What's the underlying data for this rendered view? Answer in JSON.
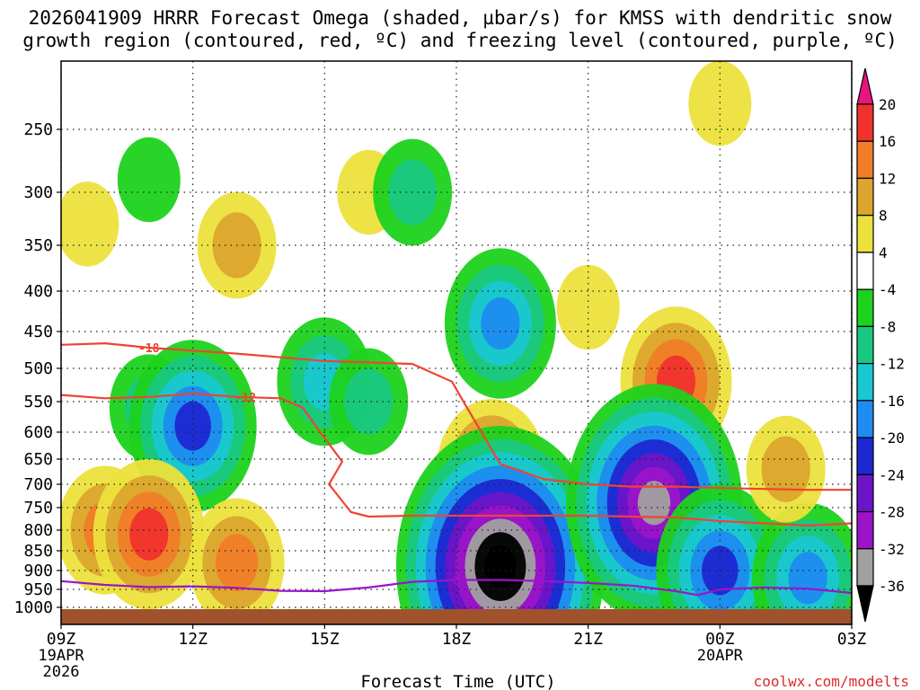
{
  "chart_data": {
    "type": "heatmap",
    "title_line1": "2026041909 HRRR Forecast Omega (shaded, µbar/s) for KMSS with dendritic snow",
    "title_line2": "growth region (contoured, red, ºC) and freezing level (contoured, purple, ºC)",
    "xlabel": "Forecast Time (UTC)",
    "ylabel": "Pressure (hPa)",
    "credit": "coolwx.com/modelts",
    "x_range_hours": [
      9,
      27
    ],
    "x_ticks": [
      {
        "hour": 9,
        "label": "09Z",
        "sub1": "19APR",
        "sub2": "2026"
      },
      {
        "hour": 12,
        "label": "12Z",
        "sub1": "",
        "sub2": ""
      },
      {
        "hour": 15,
        "label": "15Z",
        "sub1": "",
        "sub2": ""
      },
      {
        "hour": 18,
        "label": "18Z",
        "sub1": "",
        "sub2": ""
      },
      {
        "hour": 21,
        "label": "21Z",
        "sub1": "",
        "sub2": ""
      },
      {
        "hour": 24,
        "label": "00Z",
        "sub1": "20APR",
        "sub2": ""
      },
      {
        "hour": 27,
        "label": "03Z",
        "sub1": "",
        "sub2": ""
      }
    ],
    "y_ticks": [
      {
        "p": 250,
        "label": "250"
      },
      {
        "p": 300,
        "label": "300"
      },
      {
        "p": 350,
        "label": "350"
      },
      {
        "p": 400,
        "label": "400"
      },
      {
        "p": 450,
        "label": "450"
      },
      {
        "p": 500,
        "label": "500"
      },
      {
        "p": 550,
        "label": "550"
      },
      {
        "p": 600,
        "label": "600"
      },
      {
        "p": 650,
        "label": "650"
      },
      {
        "p": 700,
        "label": "700"
      },
      {
        "p": 750,
        "label": "750"
      },
      {
        "p": 800,
        "label": "800"
      },
      {
        "p": 850,
        "label": "850"
      },
      {
        "p": 900,
        "label": "900"
      },
      {
        "p": 950,
        "label": "950"
      },
      {
        "p": 1000,
        "label": "1000"
      }
    ],
    "y_range_hpa": [
      200,
      1025
    ],
    "colorbar": {
      "labels": [
        "20",
        "16",
        "12",
        "8",
        "4",
        "-4",
        "-8",
        "-12",
        "-16",
        "-20",
        "-24",
        "-28",
        "-32",
        "-36"
      ],
      "bins": [
        {
          "range": ">20",
          "color": "#e8157f"
        },
        {
          "range": "16 to 20",
          "color": "#f0322d"
        },
        {
          "range": "12 to 16",
          "color": "#f07d28"
        },
        {
          "range": "8 to 12",
          "color": "#dca52d"
        },
        {
          "range": "4 to 8",
          "color": "#ece13c"
        },
        {
          "range": "-4 to 4",
          "color": "#ffffff"
        },
        {
          "range": "-8 to -4",
          "color": "#1ed21e"
        },
        {
          "range": "-12 to -8",
          "color": "#19c880"
        },
        {
          "range": "-16 to -12",
          "color": "#19c8d2"
        },
        {
          "range": "-20 to -16",
          "color": "#1e8cf0"
        },
        {
          "range": "-24 to -20",
          "color": "#1e28d2"
        },
        {
          "range": "-28 to -24",
          "color": "#6e14c8"
        },
        {
          "range": "-32 to -28",
          "color": "#9b14c8"
        },
        {
          "range": "-36 to -32",
          "color": "#a0a0a0"
        },
        {
          "range": "<-36",
          "color": "#000000"
        }
      ]
    },
    "omega_cells": [
      {
        "hour": 11.0,
        "p": 290,
        "value": -6
      },
      {
        "hour": 9.6,
        "p": 330,
        "value": 5
      },
      {
        "hour": 13.0,
        "p": 350,
        "value": 9
      },
      {
        "hour": 16.0,
        "p": 300,
        "value": 5
      },
      {
        "hour": 19.0,
        "p": 90,
        "value": 6
      },
      {
        "hour": 17.0,
        "p": 300,
        "value": -9
      },
      {
        "hour": 21.0,
        "p": 420,
        "value": 6
      },
      {
        "hour": 24.0,
        "p": 230,
        "value": 6
      },
      {
        "hour": 11.0,
        "p": 560,
        "value": -10
      },
      {
        "hour": 12.0,
        "p": 590,
        "value": -22
      },
      {
        "hour": 15.0,
        "p": 520,
        "value": -12
      },
      {
        "hour": 19.0,
        "p": 440,
        "value": -18
      },
      {
        "hour": 10.0,
        "p": 800,
        "value": 14
      },
      {
        "hour": 11.0,
        "p": 810,
        "value": 17
      },
      {
        "hour": 13.0,
        "p": 880,
        "value": 13
      },
      {
        "hour": 18.8,
        "p": 680,
        "value": 18
      },
      {
        "hour": 19.0,
        "p": 890,
        "value": -40
      },
      {
        "hour": 23.0,
        "p": 890,
        "value": 22
      },
      {
        "hour": 23.0,
        "p": 520,
        "value": 19
      },
      {
        "hour": 22.5,
        "p": 740,
        "value": -32
      },
      {
        "hour": 24.0,
        "p": 900,
        "value": -20
      },
      {
        "hour": 26.0,
        "p": 920,
        "value": -17
      },
      {
        "hour": 25.5,
        "p": 670,
        "value": 10
      },
      {
        "hour": 16.0,
        "p": 550,
        "value": -9
      }
    ],
    "series": [
      {
        "name": "-18 ºC isotherm (DGZ)",
        "color": "#ee4433",
        "label": "-18",
        "x": [
          9,
          10,
          11,
          12,
          13,
          14,
          15,
          16,
          17,
          17.9,
          18.2,
          19,
          20,
          21,
          22,
          23,
          24,
          25,
          26,
          27
        ],
        "p": [
          468,
          466,
          472,
          476,
          480,
          485,
          490,
          492,
          494,
          520,
          555,
          660,
          690,
          700,
          705,
          705,
          708,
          710,
          712,
          712
        ]
      },
      {
        "name": "-12 ºC isotherm (DGZ)",
        "color": "#ee4433",
        "label": "-12",
        "x": [
          9,
          10,
          11,
          12,
          13,
          14,
          14.5,
          14.9,
          15.4,
          15.1,
          15.6,
          16,
          17,
          18,
          19,
          20,
          21,
          22,
          23,
          24,
          25,
          26,
          27
        ],
        "p": [
          540,
          545,
          543,
          538,
          543,
          545,
          560,
          600,
          655,
          700,
          760,
          770,
          768,
          768,
          768,
          768,
          768,
          770,
          772,
          780,
          785,
          790,
          785
        ],
        "label_hour": 13.2
      },
      {
        "name": "0 ºC freezing level",
        "color": "#9b14c8",
        "label": "0",
        "x": [
          9,
          10,
          11,
          12,
          13,
          14,
          15,
          16,
          17,
          18,
          19,
          20,
          21,
          22,
          23,
          23.5,
          24,
          25,
          26,
          27
        ],
        "p": [
          928,
          938,
          944,
          942,
          946,
          954,
          955,
          945,
          930,
          925,
          925,
          928,
          933,
          940,
          955,
          966,
          950,
          945,
          948,
          960
        ],
        "label_hour": 18.0
      }
    ]
  }
}
